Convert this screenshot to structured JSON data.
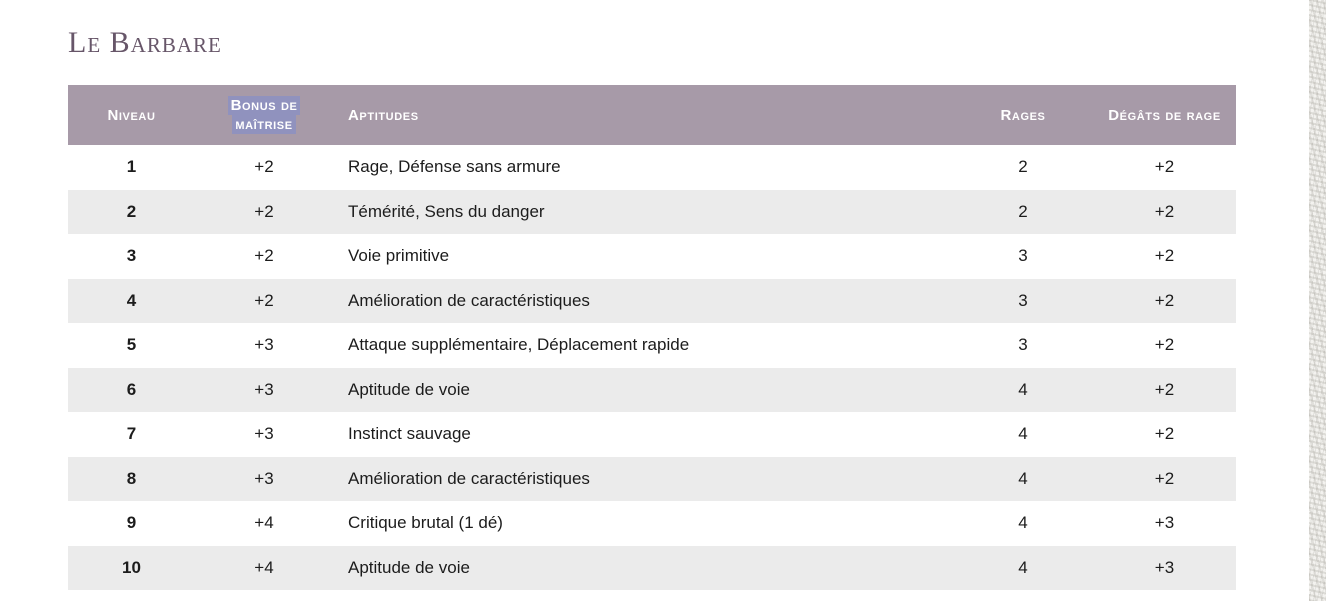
{
  "page": {
    "title": "Le Barbare"
  },
  "table": {
    "columns": [
      {
        "label": "Niveau"
      },
      {
        "label": "Bonus de maîtrise",
        "selected": true
      },
      {
        "label": "Aptitudes"
      },
      {
        "label": "Rages"
      },
      {
        "label": "Dégâts de rage"
      }
    ],
    "rows": [
      {
        "niveau": "1",
        "bonus": "+2",
        "aptitudes": "Rage, Défense sans armure",
        "rages": "2",
        "degats": "+2"
      },
      {
        "niveau": "2",
        "bonus": "+2",
        "aptitudes": "Témérité, Sens du danger",
        "rages": "2",
        "degats": "+2"
      },
      {
        "niveau": "3",
        "bonus": "+2",
        "aptitudes": "Voie primitive",
        "rages": "3",
        "degats": "+2"
      },
      {
        "niveau": "4",
        "bonus": "+2",
        "aptitudes": "Amélioration de caractéristiques",
        "rages": "3",
        "degats": "+2"
      },
      {
        "niveau": "5",
        "bonus": "+3",
        "aptitudes": "Attaque supplémentaire, Déplacement rapide",
        "rages": "3",
        "degats": "+2"
      },
      {
        "niveau": "6",
        "bonus": "+3",
        "aptitudes": "Aptitude de voie",
        "rages": "4",
        "degats": "+2"
      },
      {
        "niveau": "7",
        "bonus": "+3",
        "aptitudes": "Instinct sauvage",
        "rages": "4",
        "degats": "+2"
      },
      {
        "niveau": "8",
        "bonus": "+3",
        "aptitudes": "Amélioration de caractéristiques",
        "rages": "4",
        "degats": "+2"
      },
      {
        "niveau": "9",
        "bonus": "+4",
        "aptitudes": "Critique brutal (1 dé)",
        "rages": "4",
        "degats": "+3"
      },
      {
        "niveau": "10",
        "bonus": "+4",
        "aptitudes": "Aptitude de voie",
        "rages": "4",
        "degats": "+3"
      }
    ]
  },
  "colors": {
    "header_bg": "#a79aa8",
    "header_text": "#ffffff",
    "selection_highlight": "#9092be",
    "title_text": "#675669",
    "row_stripe": "#ebebeb",
    "body_text": "#1c1c1c",
    "page_bg": "#ffffff"
  }
}
